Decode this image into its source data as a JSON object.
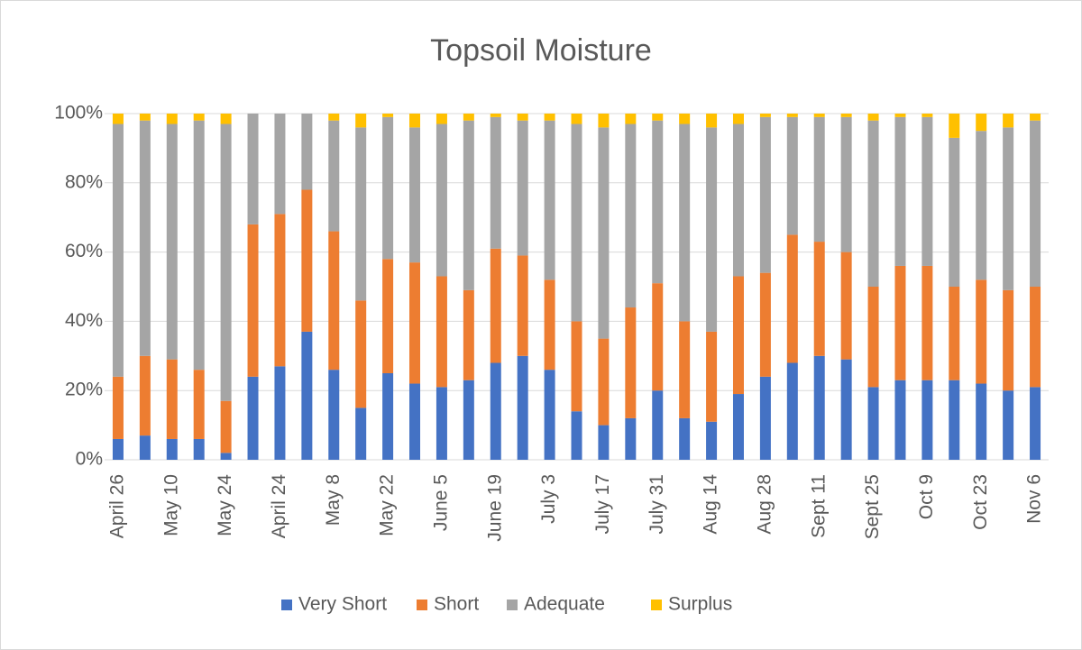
{
  "chart_data": {
    "type": "bar",
    "stacked": true,
    "title": "Topsoil Moisture",
    "categories": [
      "April 26",
      null,
      "May 10",
      null,
      "May 24",
      null,
      "April 24",
      null,
      "May 8",
      null,
      "May 22",
      null,
      "June 5",
      null,
      "June 19",
      null,
      "July 3",
      null,
      "July 17",
      null,
      "July 31",
      null,
      "Aug 14",
      null,
      "Aug 28",
      null,
      "Sept 11",
      null,
      "Sept 25",
      null,
      "Oct 9",
      null,
      "Oct 23",
      null,
      "Nov 6"
    ],
    "series": [
      {
        "name": "Very Short",
        "color": "#4472c4",
        "values": [
          6,
          7,
          6,
          6,
          2,
          24,
          27,
          37,
          26,
          15,
          25,
          22,
          21,
          23,
          28,
          30,
          26,
          14,
          10,
          12,
          20,
          12,
          11,
          19,
          24,
          28,
          30,
          29,
          21,
          23,
          23,
          23,
          22,
          20,
          21
        ]
      },
      {
        "name": "Short",
        "color": "#ed7d31",
        "values": [
          18,
          23,
          23,
          20,
          15,
          44,
          44,
          41,
          40,
          31,
          33,
          35,
          32,
          26,
          33,
          29,
          26,
          26,
          25,
          32,
          31,
          28,
          26,
          34,
          30,
          37,
          33,
          31,
          29,
          33,
          33,
          27,
          30,
          29,
          29
        ]
      },
      {
        "name": "Adequate",
        "color": "#a5a5a5",
        "values": [
          73,
          68,
          68,
          72,
          80,
          32,
          29,
          22,
          32,
          50,
          41,
          39,
          44,
          49,
          38,
          39,
          46,
          57,
          61,
          53,
          47,
          57,
          59,
          44,
          45,
          34,
          36,
          39,
          48,
          43,
          43,
          43,
          43,
          47,
          48
        ]
      },
      {
        "name": "Surplus",
        "color": "#ffc000",
        "values": [
          3,
          2,
          3,
          2,
          3,
          0,
          0,
          0,
          2,
          4,
          1,
          4,
          3,
          2,
          1,
          2,
          2,
          3,
          4,
          3,
          2,
          3,
          4,
          3,
          1,
          1,
          1,
          1,
          2,
          1,
          1,
          7,
          5,
          4,
          2
        ]
      }
    ],
    "ylim": [
      0,
      100
    ],
    "yticks": [
      {
        "value": 0,
        "label": "0%"
      },
      {
        "value": 20,
        "label": "20%"
      },
      {
        "value": 40,
        "label": "40%"
      },
      {
        "value": 60,
        "label": "60%"
      },
      {
        "value": 80,
        "label": "80%"
      },
      {
        "value": 100,
        "label": "100%"
      }
    ],
    "grid": true,
    "legend": "bottom"
  }
}
